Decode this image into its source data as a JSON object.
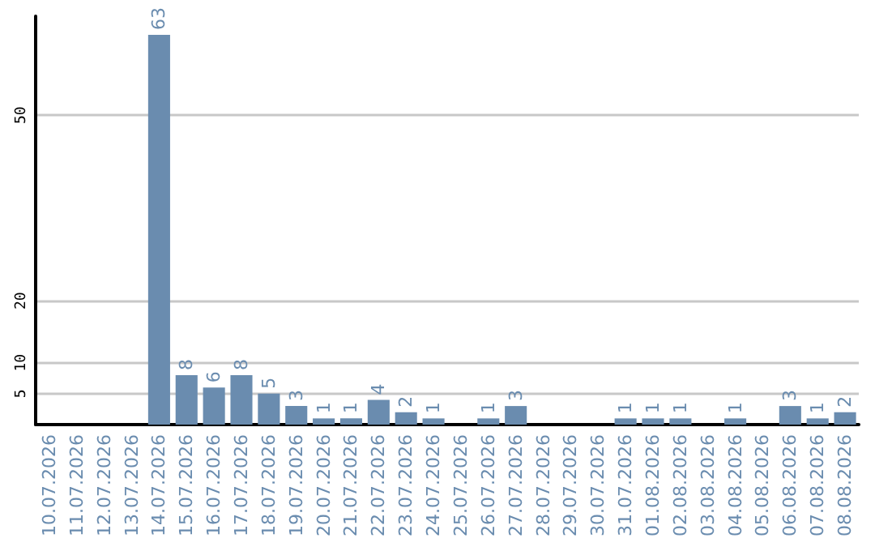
{
  "chart_data": {
    "type": "bar",
    "categories": [
      "10.07.2026",
      "11.07.2026",
      "12.07.2026",
      "13.07.2026",
      "14.07.2026",
      "15.07.2026",
      "16.07.2026",
      "17.07.2026",
      "18.07.2026",
      "19.07.2026",
      "20.07.2026",
      "21.07.2026",
      "22.07.2026",
      "23.07.2026",
      "24.07.2026",
      "25.07.2026",
      "26.07.2026",
      "27.07.2026",
      "28.07.2026",
      "29.07.2026",
      "30.07.2026",
      "31.07.2026",
      "01.08.2026",
      "02.08.2026",
      "03.08.2026",
      "04.08.2026",
      "05.08.2026",
      "06.08.2026",
      "07.08.2026",
      "08.08.2026"
    ],
    "values": [
      null,
      null,
      null,
      null,
      63,
      8,
      6,
      8,
      5,
      3,
      1,
      1,
      4,
      2,
      1,
      null,
      1,
      3,
      null,
      null,
      null,
      1,
      1,
      1,
      null,
      1,
      null,
      3,
      1,
      2
    ],
    "color": "#6a8caf",
    "ylim": [
      0,
      66
    ],
    "yticks": [
      5,
      10,
      20,
      50
    ],
    "grid": "y",
    "data_labels": true
  }
}
